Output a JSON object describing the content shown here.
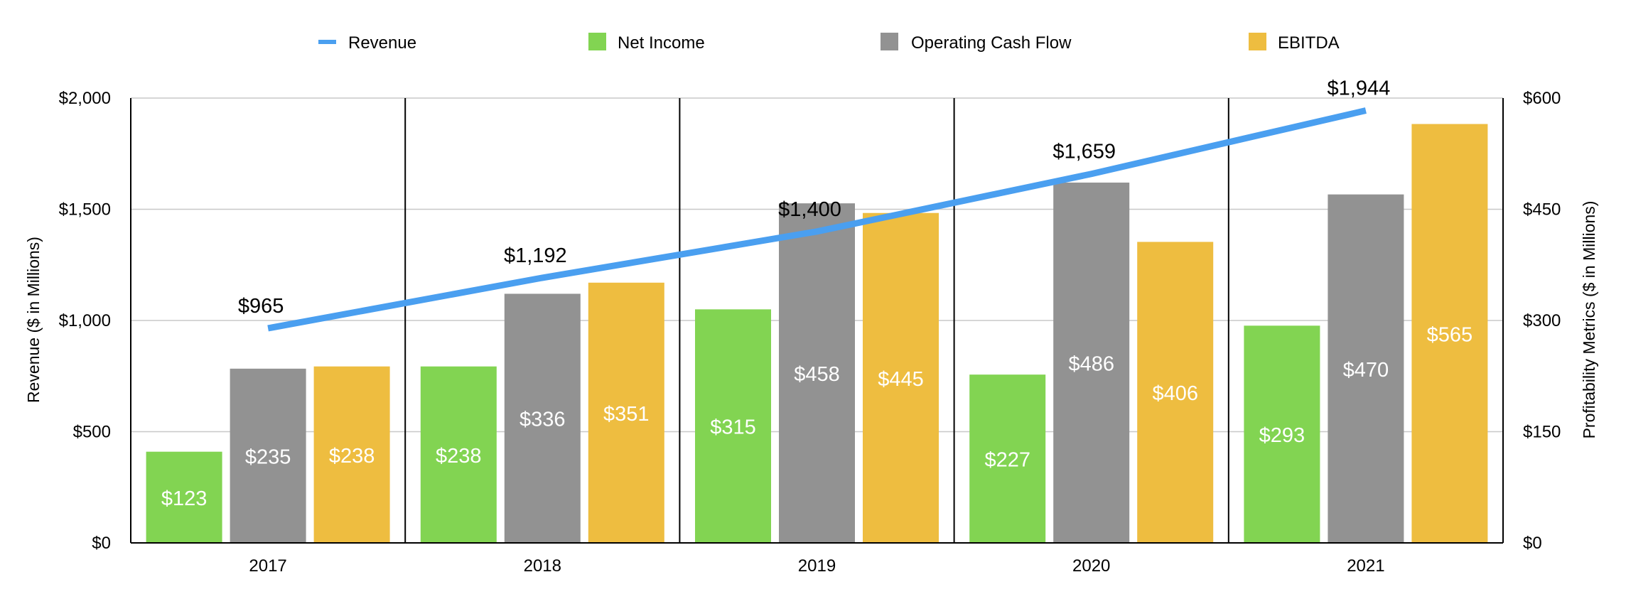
{
  "chart_data": {
    "type": "bar",
    "categories": [
      "2017",
      "2018",
      "2019",
      "2020",
      "2021"
    ],
    "series": [
      {
        "name": "Revenue",
        "type": "line",
        "axis": "left",
        "color": "#4a9ff0",
        "values": [
          965,
          1192,
          1400,
          1659,
          1944
        ],
        "labels": [
          "$965",
          "$1,192",
          "$1,400",
          "$1,659",
          "$1,944"
        ]
      },
      {
        "name": "Net Income",
        "type": "bar",
        "axis": "right",
        "color": "#82d452",
        "values": [
          123,
          238,
          315,
          227,
          293
        ],
        "labels": [
          "$123",
          "$238",
          "$315",
          "$227",
          "$293"
        ]
      },
      {
        "name": "Operating Cash Flow",
        "type": "bar",
        "axis": "right",
        "color": "#929292",
        "values": [
          235,
          336,
          458,
          486,
          470
        ],
        "labels": [
          "$235",
          "$336",
          "$458",
          "$486",
          "$470"
        ]
      },
      {
        "name": "EBITDA",
        "type": "bar",
        "axis": "right",
        "color": "#eebd40",
        "values": [
          238,
          351,
          445,
          406,
          565
        ],
        "labels": [
          "$238",
          "$351",
          "$445",
          "$406",
          "$565"
        ]
      }
    ],
    "ylabel": "Revenue ($ in Millions)",
    "y2label": "Profitability Metrics ($ in Millions)",
    "ylim": [
      0,
      2000
    ],
    "y2lim": [
      0,
      600
    ],
    "yticks": [
      "$0",
      "$500",
      "$1,000",
      "$1,500",
      "$2,000"
    ],
    "y2ticks": [
      "$0",
      "$150",
      "$300",
      "$450",
      "$600"
    ],
    "grid": true,
    "legend": "top"
  }
}
